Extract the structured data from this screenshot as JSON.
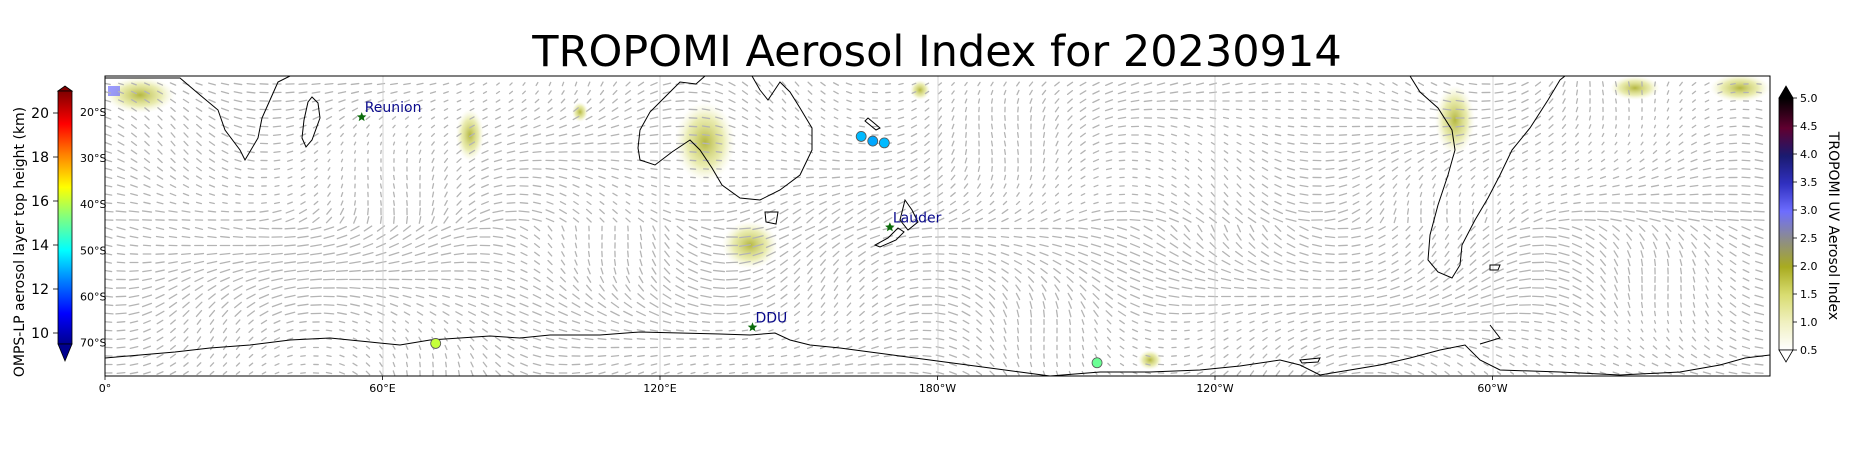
{
  "title": "TROPOMI Aerosol Index for 20230914",
  "map": {
    "lon_ticks": [
      "0°",
      "60°E",
      "120°E",
      "180°W",
      "120°W",
      "60°W"
    ],
    "lat_ticks": [
      "20°S",
      "30°S",
      "40°S",
      "50°S",
      "60°S",
      "70°S"
    ],
    "sites": [
      {
        "name": "Reunion",
        "lon": 55.5,
        "lat": -21.1
      },
      {
        "name": "Lauder",
        "lon": 169.7,
        "lat": -45.0
      },
      {
        "name": "DDU",
        "lon": 140.0,
        "lat": -66.7
      }
    ],
    "omps_points": [
      {
        "lon": 163.5,
        "lat": -25.3,
        "height_km": 13.0
      },
      {
        "lon": 166.0,
        "lat": -26.3,
        "height_km": 12.8
      },
      {
        "lon": 168.5,
        "lat": -26.7,
        "height_km": 13.0
      },
      {
        "lon": 71.5,
        "lat": -70.2,
        "height_km": 16.0
      },
      {
        "lon": 214.5,
        "lat": -74.4,
        "height_km": 15.0
      }
    ]
  },
  "colorbar_left": {
    "label": "OMPS-LP aerosol layer top height (km)",
    "ticks": [
      "10",
      "12",
      "14",
      "16",
      "18",
      "20"
    ],
    "range": [
      9.5,
      21
    ]
  },
  "colorbar_right": {
    "label": "TROPOMI UV Aerosol Index",
    "ticks": [
      "0.5",
      "1.0",
      "1.5",
      "2.0",
      "2.5",
      "3.0",
      "3.5",
      "4.0",
      "4.5",
      "5.0"
    ],
    "range": [
      0.5,
      5.0
    ]
  },
  "colors": {
    "coastline": "#000000",
    "wind_arrows": "#b4b4b4",
    "site_marker": "#0b6b0b",
    "site_label": "#0a0a8c",
    "aerosol_low": "#d8dc70",
    "aerosol_mid": "#a8ab20"
  }
}
